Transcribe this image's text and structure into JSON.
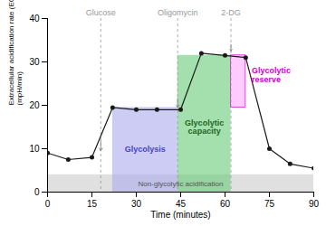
{
  "chart_data": {
    "type": "line",
    "xlabel": "Time (minutes)",
    "ylabel": "Extracellular acidification rate (ECAR)\n(mpH/min)",
    "x": [
      0,
      7,
      15,
      22,
      30,
      37,
      45,
      52,
      60,
      67,
      75,
      82,
      90
    ],
    "values": [
      9,
      7.5,
      8,
      19.5,
      19,
      19,
      19,
      32,
      31.5,
      31,
      10,
      6.5,
      5.5
    ],
    "color": "#1a1a1a",
    "marker": "circle",
    "xlim": [
      0,
      90
    ],
    "ylim": [
      0,
      40
    ],
    "xticks": [
      0,
      15,
      30,
      45,
      60,
      75,
      90
    ],
    "yticks": [
      0,
      10,
      20,
      30,
      40
    ],
    "injections": {
      "labels": [
        "Glucose",
        "Oligomycin",
        "2-DG"
      ],
      "x": [
        18,
        44,
        62
      ],
      "color": "#999999"
    },
    "arrows": {
      "color": "#888888",
      "points": [
        {
          "x": 18,
          "y_start": 12,
          "y_end": 9.5
        },
        {
          "x": 44,
          "y_start": 21.5,
          "y_end": 19.5
        },
        {
          "x": 62,
          "y_start": 34,
          "y_end": 32.5
        }
      ]
    },
    "regions": [
      {
        "label": "Non-glycolytic acidification",
        "x1": 0,
        "x2": 90,
        "y1": 0,
        "y2": 4,
        "color": "#cccccc",
        "label_x": 45,
        "label_y": 2.0,
        "label_color": "#555555"
      },
      {
        "label": "Glycolysis",
        "x1": 22,
        "x2": 44,
        "y1": 0,
        "y2": 19.5,
        "color": "#aaaaee",
        "label_x": 33,
        "label_y": 10,
        "label_color": "#4444cc"
      },
      {
        "label": "Glycolytic\ncapacity",
        "x1": 44,
        "x2": 62,
        "y1": 0,
        "y2": 31.5,
        "color": "#66cc77",
        "label_x": 53,
        "label_y": 15,
        "label_color": "#226622"
      },
      {
        "label": "Glycolytic\nreserve",
        "x1": 62,
        "x2": 67,
        "y1": 19.5,
        "y2": 31.5,
        "color": "#ffaaff",
        "label_x": 69,
        "label_y": 27,
        "label_color": "#cc00cc"
      }
    ]
  }
}
